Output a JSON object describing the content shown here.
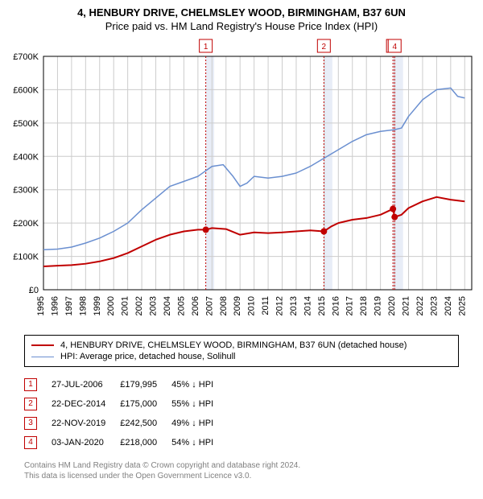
{
  "title_line1": "4, HENBURY DRIVE, CHELMSLEY WOOD, BIRMINGHAM, B37 6UN",
  "title_line2": "Price paid vs. HM Land Registry's House Price Index (HPI)",
  "chart": {
    "type": "line",
    "background_color": "#ffffff",
    "grid_color": "#cccccc",
    "x_min": 1995,
    "x_max": 2025.5,
    "x_tick_step": 1,
    "y_min": 0,
    "y_max": 700000,
    "y_tick_step": 100000,
    "y_tick_labels": [
      "£0",
      "£100K",
      "£200K",
      "£300K",
      "£400K",
      "£500K",
      "£600K",
      "£700K"
    ],
    "series": [
      {
        "id": "property",
        "label": "4, HENBURY DRIVE, CHELMSLEY WOOD, BIRMINGHAM, B37 6UN (detached house)",
        "color": "#c00000",
        "line_width": 2,
        "points": [
          [
            1995.0,
            70000
          ],
          [
            1996.0,
            72000
          ],
          [
            1997.0,
            74000
          ],
          [
            1998.0,
            78000
          ],
          [
            1999.0,
            85000
          ],
          [
            2000.0,
            95000
          ],
          [
            2001.0,
            110000
          ],
          [
            2002.0,
            130000
          ],
          [
            2003.0,
            150000
          ],
          [
            2004.0,
            165000
          ],
          [
            2005.0,
            175000
          ],
          [
            2006.0,
            180000
          ],
          [
            2006.56,
            179995
          ],
          [
            2007.0,
            185000
          ],
          [
            2008.0,
            182000
          ],
          [
            2009.0,
            165000
          ],
          [
            2010.0,
            172000
          ],
          [
            2011.0,
            170000
          ],
          [
            2012.0,
            172000
          ],
          [
            2013.0,
            175000
          ],
          [
            2014.0,
            178000
          ],
          [
            2014.97,
            175000
          ],
          [
            2015.5,
            190000
          ],
          [
            2016.0,
            200000
          ],
          [
            2017.0,
            210000
          ],
          [
            2018.0,
            215000
          ],
          [
            2019.0,
            225000
          ],
          [
            2019.89,
            242500
          ],
          [
            2020.01,
            218000
          ],
          [
            2020.5,
            225000
          ],
          [
            2021.0,
            245000
          ],
          [
            2022.0,
            265000
          ],
          [
            2023.0,
            278000
          ],
          [
            2024.0,
            270000
          ],
          [
            2025.0,
            265000
          ]
        ],
        "markers": [
          {
            "n": "1",
            "x": 2006.56,
            "y": 179995
          },
          {
            "n": "2",
            "x": 2014.97,
            "y": 175000
          },
          {
            "n": "3",
            "x": 2019.89,
            "y": 242500
          },
          {
            "n": "4",
            "x": 2020.01,
            "y": 218000
          }
        ]
      },
      {
        "id": "hpi",
        "label": "HPI: Average price, detached house, Solihull",
        "color": "#6a8fd0",
        "line_width": 1.5,
        "points": [
          [
            1995.0,
            120000
          ],
          [
            1996.0,
            122000
          ],
          [
            1997.0,
            128000
          ],
          [
            1998.0,
            140000
          ],
          [
            1999.0,
            155000
          ],
          [
            2000.0,
            175000
          ],
          [
            2001.0,
            200000
          ],
          [
            2002.0,
            240000
          ],
          [
            2003.0,
            275000
          ],
          [
            2004.0,
            310000
          ],
          [
            2005.0,
            325000
          ],
          [
            2006.0,
            340000
          ],
          [
            2007.0,
            370000
          ],
          [
            2007.8,
            375000
          ],
          [
            2008.5,
            340000
          ],
          [
            2009.0,
            310000
          ],
          [
            2009.5,
            320000
          ],
          [
            2010.0,
            340000
          ],
          [
            2011.0,
            335000
          ],
          [
            2012.0,
            340000
          ],
          [
            2013.0,
            350000
          ],
          [
            2014.0,
            370000
          ],
          [
            2015.0,
            395000
          ],
          [
            2016.0,
            420000
          ],
          [
            2017.0,
            445000
          ],
          [
            2018.0,
            465000
          ],
          [
            2019.0,
            475000
          ],
          [
            2020.0,
            480000
          ],
          [
            2020.5,
            485000
          ],
          [
            2021.0,
            520000
          ],
          [
            2022.0,
            570000
          ],
          [
            2023.0,
            600000
          ],
          [
            2024.0,
            605000
          ],
          [
            2024.5,
            580000
          ],
          [
            2025.0,
            575000
          ]
        ]
      }
    ],
    "transactions": [
      {
        "n": "1",
        "date": "27-JUL-2006",
        "x": 2006.56,
        "price": "£179,995",
        "delta": "45% ↓ HPI"
      },
      {
        "n": "2",
        "date": "22-DEC-2014",
        "x": 2014.97,
        "price": "£175,000",
        "delta": "55% ↓ HPI"
      },
      {
        "n": "3",
        "date": "22-NOV-2019",
        "x": 2019.89,
        "price": "£242,500",
        "delta": "49% ↓ HPI"
      },
      {
        "n": "4",
        "date": "03-JAN-2020",
        "x": 2020.01,
        "price": "£218,000",
        "delta": "54% ↓ HPI"
      }
    ],
    "marker_band_color": "#e8edf7",
    "marker_line_color": "#c00000",
    "marker_box_top_offset": 3
  },
  "license_line1": "Contains HM Land Registry data © Crown copyright and database right 2024.",
  "license_line2": "This data is licensed under the Open Government Licence v3.0."
}
